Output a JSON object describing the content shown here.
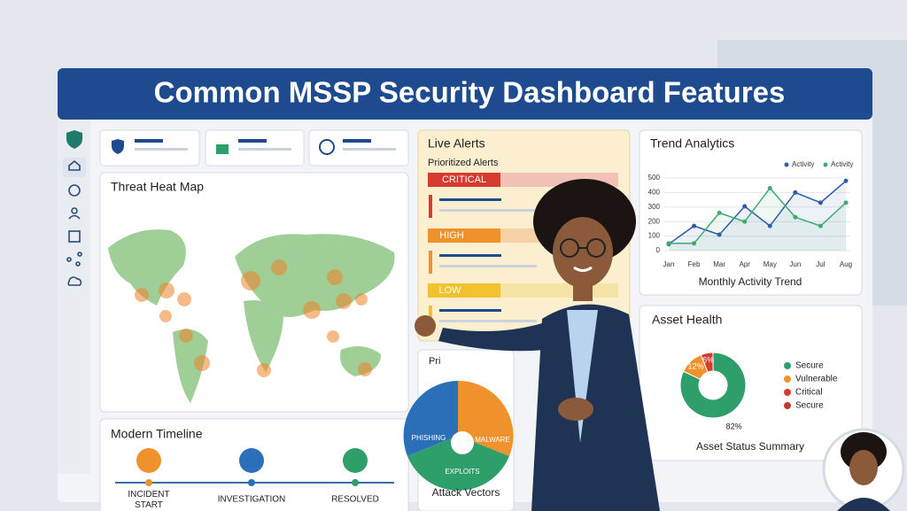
{
  "header": {
    "title": "Common MSSP Security Dashboard Features"
  },
  "heat_map": {
    "title": "Threat Heat Map"
  },
  "live_alerts": {
    "title": "Live Alerts",
    "subtitle": "Prioritized Alerts",
    "levels": [
      "CRITICAL",
      "HIGH",
      "LOW"
    ]
  },
  "second_card": {
    "title": "Pri"
  },
  "attack_vectors": {
    "title": "Attack Vectors",
    "segments": [
      "PHISHING",
      "MALWARE",
      "EXPLOITS"
    ]
  },
  "timeline": {
    "title": "Modern Timeline",
    "steps": [
      "INCIDENT\nSTART",
      "INVESTIGATION",
      "RESOLVED"
    ]
  },
  "trend": {
    "title": "Trend Analytics"
  },
  "asset_health": {
    "title": "Asset Health",
    "caption": "Asset Status Summary",
    "legend": [
      {
        "name": "Secure",
        "color": "#2e9e6a"
      },
      {
        "name": "Vulnerable",
        "color": "#f0922b"
      },
      {
        "name": "Critical",
        "color": "#d63b2f"
      },
      {
        "name": "Secure",
        "color": "#c0392b"
      }
    ]
  },
  "chart_data": [
    {
      "type": "line",
      "title": "Monthly Activity Trend",
      "categories": [
        "Jan",
        "Feb",
        "Mar",
        "Apr",
        "May",
        "Jun",
        "Jul",
        "Aug"
      ],
      "series": [
        {
          "name": "Activity",
          "color": "#2a5caa",
          "values": [
            45,
            170,
            110,
            305,
            170,
            400,
            330,
            480
          ]
        },
        {
          "name": "Activity",
          "color": "#3daa6e",
          "values": [
            50,
            50,
            260,
            200,
            430,
            230,
            170,
            330
          ]
        }
      ],
      "ylim": [
        0,
        500
      ],
      "yticks": [
        0,
        100,
        200,
        300,
        400,
        500
      ],
      "grid": true
    },
    {
      "type": "pie",
      "values": [
        82,
        12,
        6
      ],
      "value_labels": [
        "82%",
        "12%",
        "6%"
      ],
      "colors": [
        "#2e9e6a",
        "#f0922b",
        "#d63b2f"
      ]
    }
  ]
}
